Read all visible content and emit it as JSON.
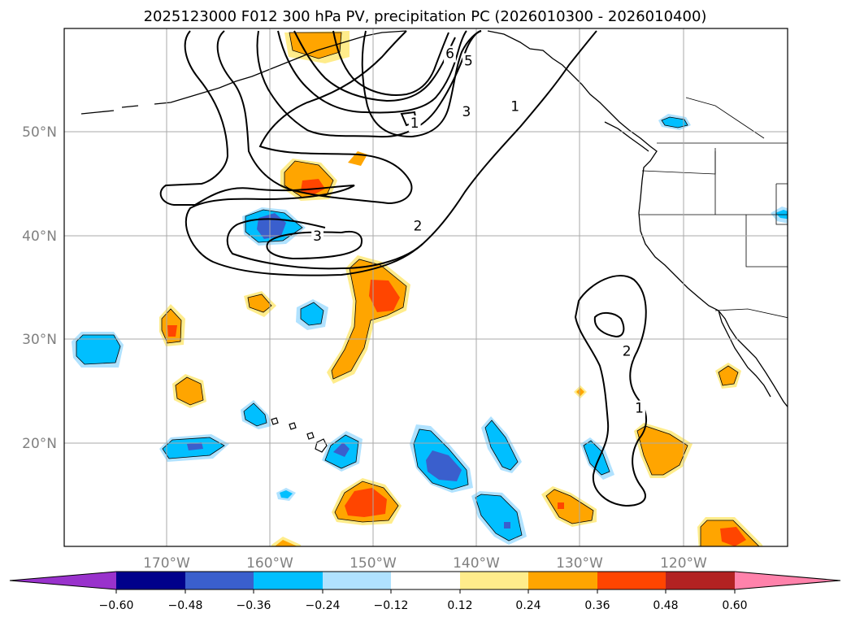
{
  "title": "2025123000 F012 300 hPa PV, precipitation PC (2026010300 - 2026010400)",
  "map": {
    "lon_ticks": [
      {
        "lon": -170,
        "label": "170°W"
      },
      {
        "lon": -160,
        "label": "160°W"
      },
      {
        "lon": -150,
        "label": "150°W"
      },
      {
        "lon": -140,
        "label": "140°W"
      },
      {
        "lon": -130,
        "label": "130°W"
      },
      {
        "lon": -120,
        "label": "120°W"
      }
    ],
    "lat_ticks": [
      {
        "lat": 50,
        "label": "50°N"
      },
      {
        "lat": 40,
        "label": "40°N"
      },
      {
        "lat": 30,
        "label": "30°N"
      },
      {
        "lat": 20,
        "label": "20°N"
      }
    ],
    "pv_contour_labels": [
      {
        "text": "6",
        "lon": -142.6,
        "lat": 57.6
      },
      {
        "text": "5",
        "lon": -140.8,
        "lat": 56.9
      },
      {
        "text": "3",
        "lon": -141.0,
        "lat": 52.0
      },
      {
        "text": "1",
        "lon": -136.3,
        "lat": 52.5
      },
      {
        "text": "1",
        "lon": -146.0,
        "lat": 50.9
      },
      {
        "text": "2",
        "lon": -145.7,
        "lat": 41.0
      },
      {
        "text": "3",
        "lon": -155.4,
        "lat": 40.0
      },
      {
        "text": "2",
        "lon": -125.5,
        "lat": 28.9
      },
      {
        "text": "1",
        "lon": -124.3,
        "lat": 23.4
      }
    ]
  },
  "colorbar": {
    "colors": [
      "#9932cc",
      "#00008b",
      "#3a5fcd",
      "#00bfff",
      "#b0e2ff",
      "#ffffff",
      "#ffec8b",
      "#ffa500",
      "#ff4500",
      "#b22222",
      "#ff82ab"
    ],
    "tick_labels": [
      "−0.60",
      "−0.48",
      "−0.36",
      "−0.24",
      "−0.12",
      "0.12",
      "0.24",
      "0.36",
      "0.48",
      "0.60"
    ]
  },
  "colors": {
    "contour": "#000000",
    "grid": "#aaaaaa",
    "axis_label": "#808080"
  }
}
